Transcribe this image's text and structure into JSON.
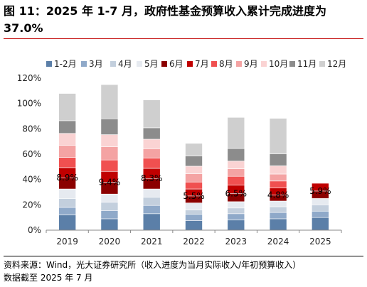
{
  "title": "图 11：2025 年 1-7 月，政府性基金预算收入累计完成进度为 37.0%",
  "source_line1": "资料来源：Wind，光大证券研究所（收入进度为当月实际收入/年初预算收入）",
  "source_line2": "数据截至 2025 年 7 月",
  "chart_data": {
    "type": "bar",
    "stacked": true,
    "categories": [
      "2019",
      "2020",
      "2021",
      "2022",
      "2023",
      "2024",
      "2025"
    ],
    "y_ticks": [
      "0%",
      "20%",
      "40%",
      "60%",
      "80%",
      "100%",
      "120%"
    ],
    "ylim": [
      0,
      120
    ],
    "legend_position": "top",
    "series": [
      {
        "name": "1-2月",
        "color": "#5b7fa8",
        "values": [
          12.0,
          9.0,
          13.0,
          7.5,
          8.0,
          9.0,
          10.0
        ]
      },
      {
        "name": "3月",
        "color": "#8fa9c9",
        "values": [
          6.0,
          6.5,
          6.5,
          5.0,
          5.0,
          5.0,
          5.0
        ]
      },
      {
        "name": "4月",
        "color": "#c3cfdd",
        "values": [
          7.0,
          6.5,
          6.5,
          3.5,
          4.5,
          4.5,
          5.0
        ]
      },
      {
        "name": "5月",
        "color": "#e6eaf0",
        "values": [
          7.5,
          6.5,
          6.5,
          5.5,
          5.0,
          4.5,
          5.0
        ]
      },
      {
        "name": "6月",
        "color": "#8b0000",
        "values": [
          8.9,
          9.4,
          8.3,
          5.5,
          6.5,
          4.8,
          5.9
        ]
      },
      {
        "name": "7月",
        "color": "#c00000",
        "values": [
          8.0,
          8.5,
          8.0,
          5.5,
          6.5,
          5.5,
          6.1
        ]
      },
      {
        "name": "8月",
        "color": "#f05050",
        "values": [
          8.0,
          9.0,
          8.0,
          5.5,
          7.0,
          5.5,
          0
        ]
      },
      {
        "name": "9月",
        "color": "#f4a3a3",
        "values": [
          9.5,
          10.5,
          7.5,
          6.5,
          6.0,
          5.5,
          0
        ]
      },
      {
        "name": "10月",
        "color": "#fad3d3",
        "values": [
          9.5,
          9.5,
          7.5,
          6.0,
          6.0,
          6.5,
          0
        ]
      },
      {
        "name": "11月",
        "color": "#8c8c8c",
        "values": [
          10.0,
          12.5,
          9.0,
          8.0,
          10.0,
          9.5,
          0
        ]
      },
      {
        "name": "12月",
        "color": "#cfcfcf",
        "values": [
          21.5,
          27.0,
          22.0,
          10.0,
          24.5,
          28.0,
          0
        ]
      }
    ],
    "annotations": [
      {
        "series": "6月",
        "labels": [
          "8.9%",
          "9.4%",
          "8.3%",
          "5.5%",
          "6.5%",
          "4.8%",
          "5.9%"
        ]
      }
    ]
  }
}
